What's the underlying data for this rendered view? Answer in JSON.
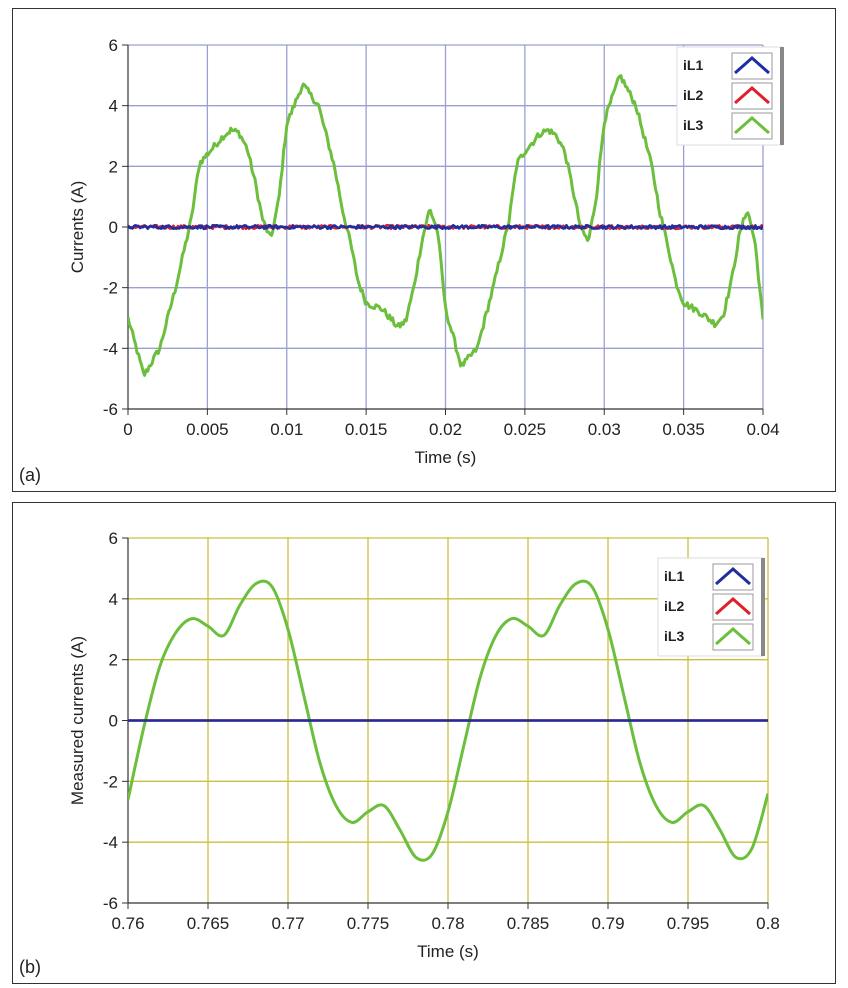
{
  "chart_data": [
    {
      "type": "line",
      "panel_label": "(a)",
      "xlabel": "Time (s)",
      "ylabel": "Currents (A)",
      "xlim": [
        0,
        0.04
      ],
      "ylim": [
        -6,
        6
      ],
      "x_ticks": [
        "0",
        "0.005",
        "0.01",
        "0.015",
        "0.02",
        "0.025",
        "0.03",
        "0.035",
        "0.04"
      ],
      "y_ticks": [
        "-6",
        "-4",
        "-2",
        "0",
        "2",
        "4",
        "6"
      ],
      "grid": true,
      "grid_color": "#9aa0d0",
      "noisy": true,
      "legend_position": "top-right",
      "series": [
        {
          "name": "iL1",
          "color": "#1f2fa0",
          "x": [
            0,
            0.04
          ],
          "y": [
            0,
            0
          ]
        },
        {
          "name": "iL2",
          "color": "#e0202a",
          "x": [
            0,
            0.04
          ],
          "y": [
            0,
            0
          ]
        },
        {
          "name": "iL3",
          "color": "#6cbf3c",
          "x": [
            0,
            0.001,
            0.002,
            0.003,
            0.004,
            0.0045,
            0.005,
            0.006,
            0.0065,
            0.007,
            0.0075,
            0.008,
            0.0085,
            0.009,
            0.0095,
            0.01,
            0.011,
            0.012,
            0.013,
            0.0135,
            0.014,
            0.0145,
            0.015,
            0.016,
            0.017,
            0.0175,
            0.018,
            0.0185,
            0.019,
            0.0195,
            0.02,
            0.021,
            0.022,
            0.023,
            0.024,
            0.0245,
            0.025,
            0.026,
            0.0265,
            0.027,
            0.0275,
            0.028,
            0.0285,
            0.029,
            0.0295,
            0.03,
            0.031,
            0.032,
            0.033,
            0.0335,
            0.034,
            0.0345,
            0.035,
            0.036,
            0.037,
            0.0375,
            0.038,
            0.0385,
            0.039,
            0.0395,
            0.04
          ],
          "y": [
            -3.0,
            -4.9,
            -4.0,
            -2.0,
            0.3,
            2.1,
            2.4,
            3.0,
            3.2,
            3.1,
            2.6,
            1.5,
            0.2,
            -0.4,
            0.9,
            3.4,
            4.7,
            4.0,
            2.0,
            0.6,
            -0.5,
            -1.8,
            -2.5,
            -2.7,
            -3.3,
            -3.1,
            -2.0,
            -0.5,
            0.6,
            -0.1,
            -2.7,
            -4.6,
            -4.0,
            -2.0,
            0.2,
            2.1,
            2.5,
            3.1,
            3.2,
            3.0,
            2.5,
            1.3,
            0.0,
            -0.5,
            1.0,
            3.5,
            5.0,
            4.0,
            2.0,
            0.5,
            -0.6,
            -1.8,
            -2.5,
            -2.8,
            -3.2,
            -2.9,
            -1.8,
            -0.3,
            0.6,
            -0.5,
            -3.1
          ]
        }
      ]
    },
    {
      "type": "line",
      "panel_label": "(b)",
      "xlabel": "Time (s)",
      "ylabel": "Measured currents (A)",
      "xlim": [
        0.76,
        0.8
      ],
      "ylim": [
        -6,
        6
      ],
      "x_ticks": [
        "0.76",
        "0.765",
        "0.77",
        "0.775",
        "0.78",
        "0.785",
        "0.79",
        "0.795",
        "0.8"
      ],
      "y_ticks": [
        "-6",
        "-4",
        "-2",
        "0",
        "2",
        "4",
        "6"
      ],
      "grid": true,
      "grid_color": "#c8c040",
      "noisy": false,
      "legend_position": "top-right",
      "series": [
        {
          "name": "iL1",
          "color": "#1f2fa0",
          "x": [
            0.76,
            0.8
          ],
          "y": [
            0,
            0
          ]
        },
        {
          "name": "iL2",
          "color": "#e0202a",
          "x": [
            0.76,
            0.8
          ],
          "y": [
            0,
            0
          ]
        },
        {
          "name": "iL3",
          "color": "#6cbf3c",
          "x": [
            0.76,
            0.761,
            0.762,
            0.763,
            0.764,
            0.765,
            0.766,
            0.767,
            0.768,
            0.769,
            0.77,
            0.771,
            0.772,
            0.773,
            0.774,
            0.775,
            0.776,
            0.777,
            0.778,
            0.779,
            0.78,
            0.781,
            0.782,
            0.783,
            0.784,
            0.785,
            0.786,
            0.787,
            0.788,
            0.789,
            0.79,
            0.791,
            0.792,
            0.793,
            0.794,
            0.795,
            0.796,
            0.797,
            0.798,
            0.799,
            0.8
          ],
          "y": [
            -2.6,
            -0.2,
            1.8,
            2.9,
            3.35,
            3.1,
            2.8,
            3.8,
            4.5,
            4.4,
            3.0,
            0.8,
            -1.4,
            -2.8,
            -3.35,
            -3.0,
            -2.8,
            -3.6,
            -4.5,
            -4.4,
            -3.0,
            -0.8,
            1.4,
            2.8,
            3.35,
            3.1,
            2.8,
            3.8,
            4.5,
            4.4,
            3.0,
            0.8,
            -1.4,
            -2.8,
            -3.35,
            -3.0,
            -2.8,
            -3.6,
            -4.5,
            -4.2,
            -2.4
          ]
        }
      ]
    }
  ]
}
